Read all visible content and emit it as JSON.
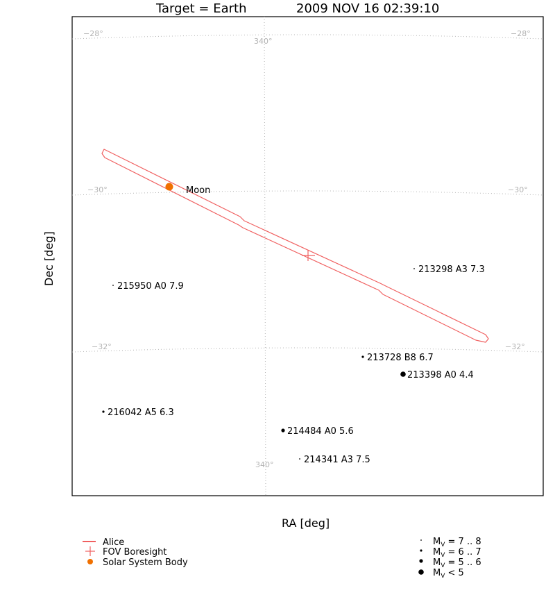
{
  "chart_data": {
    "type": "scatter",
    "title_left": "Target = Earth",
    "title_right": "2009 NOV 16 02:39:10",
    "xlabel": "RA [deg]",
    "ylabel": "Dec [deg]",
    "grid": true,
    "grid_dec_labels": [
      "−28°",
      "−30°",
      "−32°"
    ],
    "grid_ra_label": "340°",
    "colors": {
      "fov": "#f06060",
      "body": "#f07000",
      "grid": "#b3b3b3",
      "text": "#000000"
    },
    "fov": {
      "name": "Alice"
    },
    "boresight": {
      "name": "FOV Boresight"
    },
    "bodies": [
      {
        "name": "Moon"
      }
    ],
    "stars": [
      {
        "label": "215950 A0 7.9",
        "hd": "215950",
        "type": "A0",
        "mag": 7.9
      },
      {
        "label": "213298 A3 7.3",
        "hd": "213298",
        "type": "A3",
        "mag": 7.3
      },
      {
        "label": "213728 B8 6.7",
        "hd": "213728",
        "type": "B8",
        "mag": 6.7
      },
      {
        "label": "213398 A0 4.4",
        "hd": "213398",
        "type": "A0",
        "mag": 4.4
      },
      {
        "label": "216042 A5 6.3",
        "hd": "216042",
        "type": "A5",
        "mag": 6.3
      },
      {
        "label": "214484 A0 5.6",
        "hd": "214484",
        "type": "A0",
        "mag": 5.6
      },
      {
        "label": "214341 A3 7.5",
        "hd": "214341",
        "type": "A3",
        "mag": 7.5
      }
    ],
    "legend": {
      "left": [
        {
          "symbol": "line",
          "label": "Alice"
        },
        {
          "symbol": "cross",
          "label": "FOV Boresight"
        },
        {
          "symbol": "body",
          "label": "Solar System Body"
        }
      ],
      "right": [
        {
          "symbol": "mag78",
          "prefix": "M",
          "sub": "V",
          "range": " = 7 .. 8"
        },
        {
          "symbol": "mag67",
          "prefix": "M",
          "sub": "V",
          "range": " = 6 .. 7"
        },
        {
          "symbol": "mag56",
          "prefix": "M",
          "sub": "V",
          "range": " = 5 .. 6"
        },
        {
          "symbol": "mag5",
          "prefix": "M",
          "sub": "V",
          "range": " < 5"
        }
      ]
    }
  }
}
